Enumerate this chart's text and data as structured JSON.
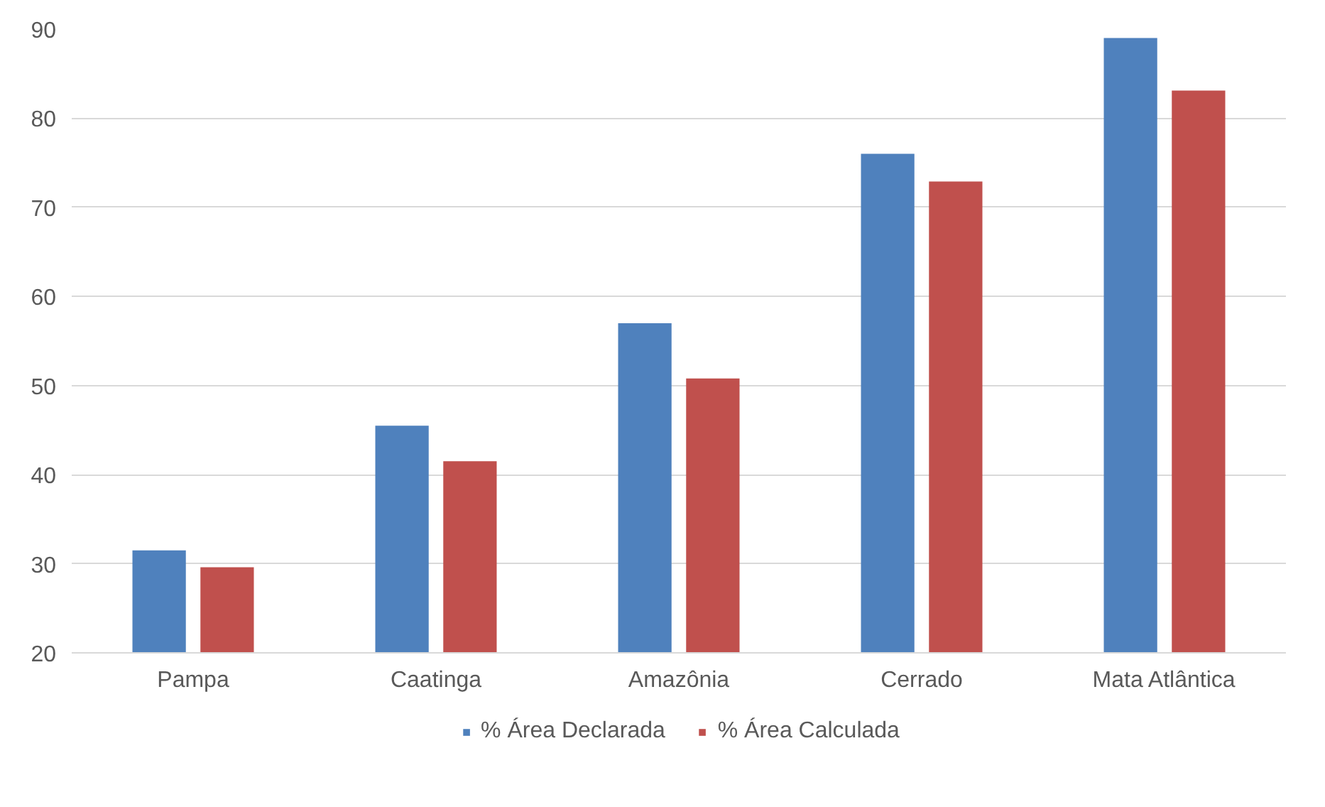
{
  "chart_data": {
    "type": "bar",
    "categories": [
      "Pampa",
      "Caatinga",
      "Amazônia",
      "Cerrado",
      "Mata Atlântica"
    ],
    "series": [
      {
        "name": "% Área Declarada",
        "color": "#4f81bd",
        "values": [
          31.5,
          45.5,
          57,
          76,
          89
        ]
      },
      {
        "name": "% Área Calculada",
        "color": "#c0504d",
        "values": [
          29.6,
          41.5,
          50.8,
          72.9,
          83.1
        ]
      }
    ],
    "ylim": [
      20,
      90
    ],
    "yticks": [
      20,
      30,
      40,
      50,
      60,
      70,
      80,
      90
    ],
    "grid": "y",
    "legend": "bottom"
  }
}
